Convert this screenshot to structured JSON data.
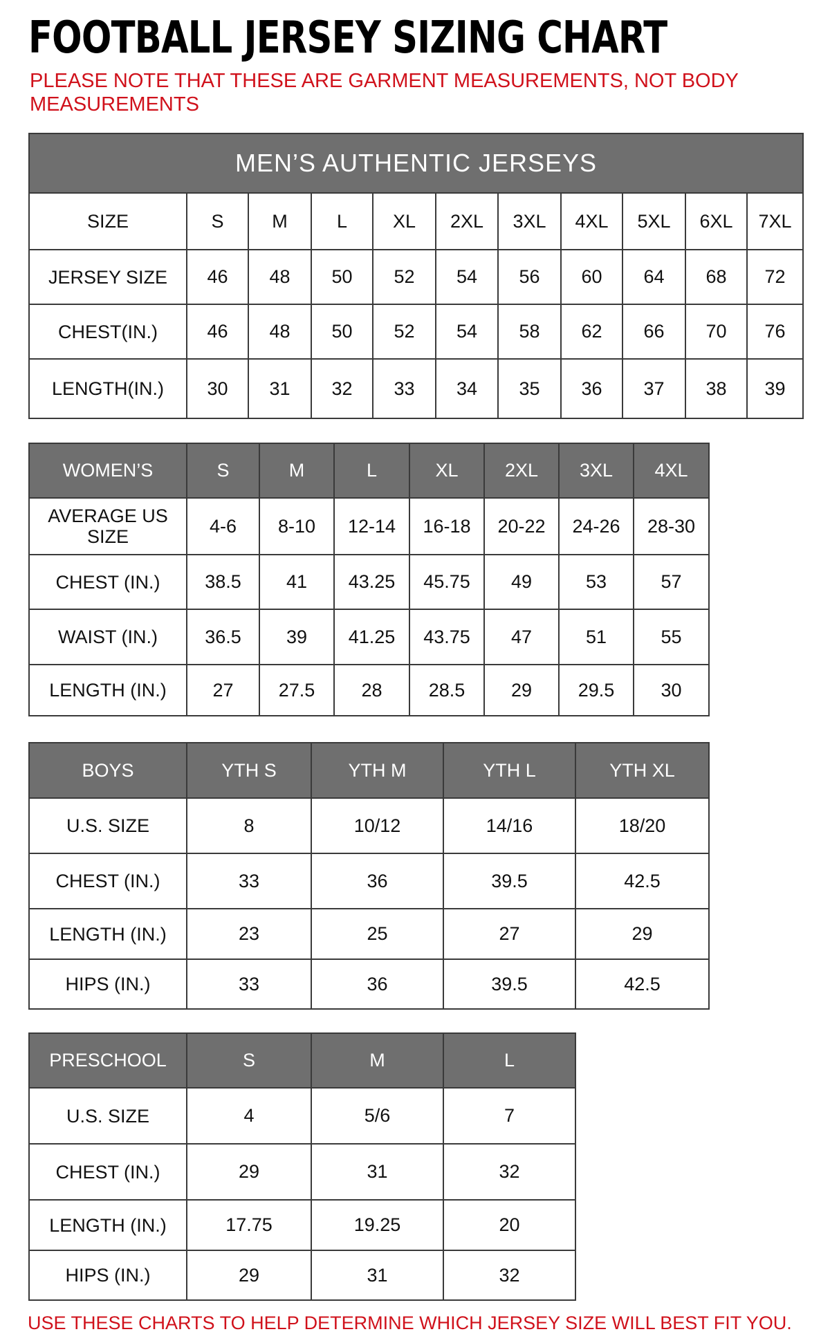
{
  "title": "FOOTBALL JERSEY SIZING CHART",
  "note": "PLEASE NOTE THAT THESE ARE GARMENT MEASUREMENTS, NOT BODY MEASUREMENTS",
  "footer": "USE THESE CHARTS TO HELP DETERMINE WHICH JERSEY SIZE WILL BEST FIT YOU.",
  "colors": {
    "header_bg": "#6f6f6f",
    "note_red": "#d0111b",
    "grid": "#3a3a3a"
  },
  "tables": [
    {
      "id": "mens",
      "caption": "MEN’S AUTHENTIC JERSEYS",
      "header": [
        "SIZE",
        "S",
        "M",
        "L",
        "XL",
        "2XL",
        "3XL",
        "4XL",
        "5XL",
        "6XL",
        "7XL"
      ],
      "header_style": "plain",
      "rows": [
        [
          "JERSEY SIZE",
          "46",
          "48",
          "50",
          "52",
          "54",
          "56",
          "60",
          "64",
          "68",
          "72"
        ],
        [
          "CHEST(IN.)",
          "46",
          "48",
          "50",
          "52",
          "54",
          "58",
          "62",
          "66",
          "70",
          "76"
        ],
        [
          "LENGTH(IN.)",
          "30",
          "31",
          "32",
          "33",
          "34",
          "35",
          "36",
          "37",
          "38",
          "39"
        ]
      ]
    },
    {
      "id": "womens",
      "header": [
        "WOMEN’S",
        "S",
        "M",
        "L",
        "XL",
        "2XL",
        "3XL",
        "4XL"
      ],
      "header_style": "gray",
      "rows": [
        [
          "AVERAGE US SIZE",
          "4-6",
          "8-10",
          "12-14",
          "16-18",
          "20-22",
          "24-26",
          "28-30"
        ],
        [
          "CHEST (IN.)",
          "38.5",
          "41",
          "43.25",
          "45.75",
          "49",
          "53",
          "57"
        ],
        [
          "WAIST (IN.)",
          "36.5",
          "39",
          "41.25",
          "43.75",
          "47",
          "51",
          "55"
        ],
        [
          "LENGTH (IN.)",
          "27",
          "27.5",
          "28",
          "28.5",
          "29",
          "29.5",
          "30"
        ]
      ]
    },
    {
      "id": "boys",
      "header": [
        "BOYS",
        "YTH S",
        "YTH M",
        "YTH L",
        "YTH XL"
      ],
      "header_style": "gray",
      "rows": [
        [
          "U.S. SIZE",
          "8",
          "10/12",
          "14/16",
          "18/20"
        ],
        [
          "CHEST (IN.)",
          "33",
          "36",
          "39.5",
          "42.5"
        ],
        [
          "LENGTH (IN.)",
          "23",
          "25",
          "27",
          "29"
        ],
        [
          "HIPS (IN.)",
          "33",
          "36",
          "39.5",
          "42.5"
        ]
      ]
    },
    {
      "id": "preschool",
      "header": [
        "PRESCHOOL",
        "S",
        "M",
        "L"
      ],
      "header_style": "gray",
      "rows": [
        [
          "U.S. SIZE",
          "4",
          "5/6",
          "7"
        ],
        [
          "CHEST (IN.)",
          "29",
          "31",
          "32"
        ],
        [
          "LENGTH (IN.)",
          "17.75",
          "19.25",
          "20"
        ],
        [
          "HIPS (IN.)",
          "29",
          "31",
          "32"
        ]
      ]
    }
  ]
}
